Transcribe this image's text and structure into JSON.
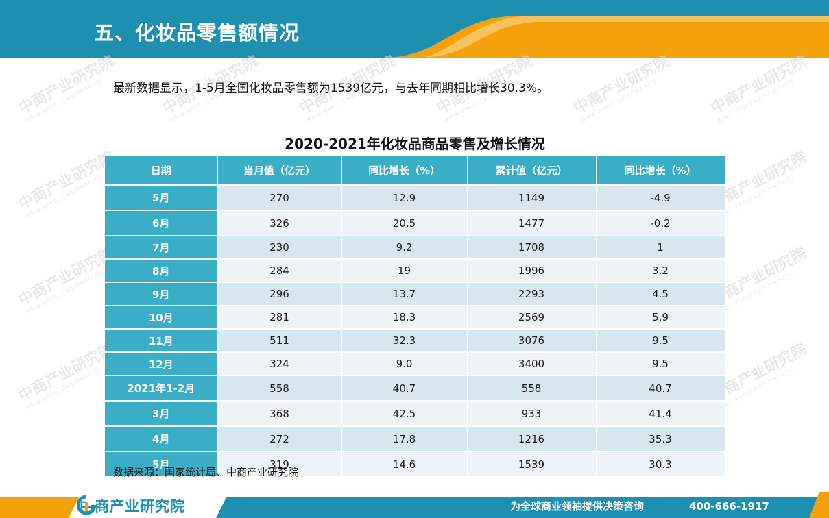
{
  "header": {
    "title": "五、化妆品零售额情况"
  },
  "intro": "最新数据显示，1-5月全国化妆品零售额为1539亿元，与去年同期相比增长30.3%。",
  "table": {
    "title": "2020-2021年化妆品商品零售及增长情况",
    "columns": [
      "日期",
      "当月值（亿元）",
      "同比增长（%）",
      "累计值（亿元）",
      "同比增长（%）"
    ],
    "rows": [
      [
        "5月",
        "270",
        "12.9",
        "1149",
        "-4.9"
      ],
      [
        "6月",
        "326",
        "20.5",
        "1477",
        "-0.2"
      ],
      [
        "7月",
        "230",
        "9.2",
        "1708",
        "1"
      ],
      [
        "8月",
        "284",
        "19",
        "1996",
        "3.2"
      ],
      [
        "9月",
        "296",
        "13.7",
        "2293",
        "4.5"
      ],
      [
        "10月",
        "281",
        "18.3",
        "2569",
        "5.9"
      ],
      [
        "11月",
        "511",
        "32.3",
        "3076",
        "9.5"
      ],
      [
        "12月",
        "324",
        "9.0",
        "3400",
        "9.5"
      ],
      [
        "2021年1-2月",
        "558",
        "40.7",
        "558",
        "40.7"
      ],
      [
        "3月",
        "368",
        "42.5",
        "933",
        "41.4"
      ],
      [
        "4月",
        "272",
        "17.8",
        "1216",
        "35.3"
      ],
      [
        "5月",
        "319",
        "14.6",
        "1539",
        "30.3"
      ]
    ]
  },
  "source": "数据来源：国家统计局、中商产业研究院",
  "footer": {
    "logo_text": "中商产业研究院",
    "slogan": "为全球商业领袖提供决策咨询",
    "phone": "400-666-1917"
  },
  "watermark": {
    "name": "中商产业研究院",
    "url": "www.askci.com/reports"
  },
  "colors": {
    "header_blue": "#1d8fb0",
    "header_orange": "#f5a20a",
    "table_header": "#3aaec6",
    "row_odd": "#d8e6ef",
    "row_even": "#edf3f7"
  }
}
